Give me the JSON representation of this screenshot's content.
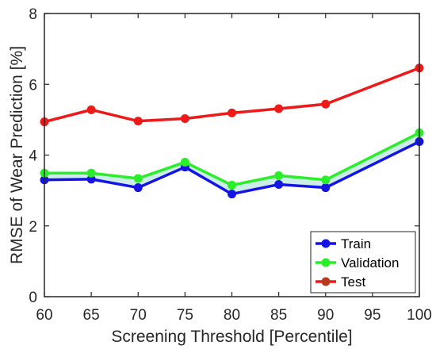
{
  "chart_data": {
    "type": "line",
    "title": "",
    "xlabel": "Screening Threshold [Percentile]",
    "ylabel": "RMSE of Wear Prediction [%]",
    "xlim": [
      60,
      100
    ],
    "ylim": [
      0,
      8
    ],
    "xticks": [
      "60",
      "65",
      "70",
      "75",
      "80",
      "85",
      "90",
      "95",
      "100"
    ],
    "yticks": [
      "0",
      "2",
      "4",
      "6",
      "8"
    ],
    "grid": false,
    "legend_position": "bottom-right",
    "x": [
      60,
      65,
      70,
      75,
      80,
      85,
      90,
      100
    ],
    "series": [
      {
        "name": "Train",
        "color": "#1414e6",
        "values": [
          3.3,
          3.32,
          3.08,
          3.66,
          2.9,
          3.17,
          3.08,
          4.38
        ]
      },
      {
        "name": "Validation",
        "color": "#2aee2a",
        "values": [
          3.49,
          3.49,
          3.34,
          3.8,
          3.15,
          3.42,
          3.3,
          4.63
        ]
      },
      {
        "name": "Test",
        "color": "#ee1a1a",
        "legend_marker_color": "#b53a1f",
        "values": [
          4.94,
          5.28,
          4.96,
          5.03,
          5.19,
          5.31,
          5.44,
          6.46
        ]
      }
    ],
    "band_fill": "#cdeee8"
  }
}
